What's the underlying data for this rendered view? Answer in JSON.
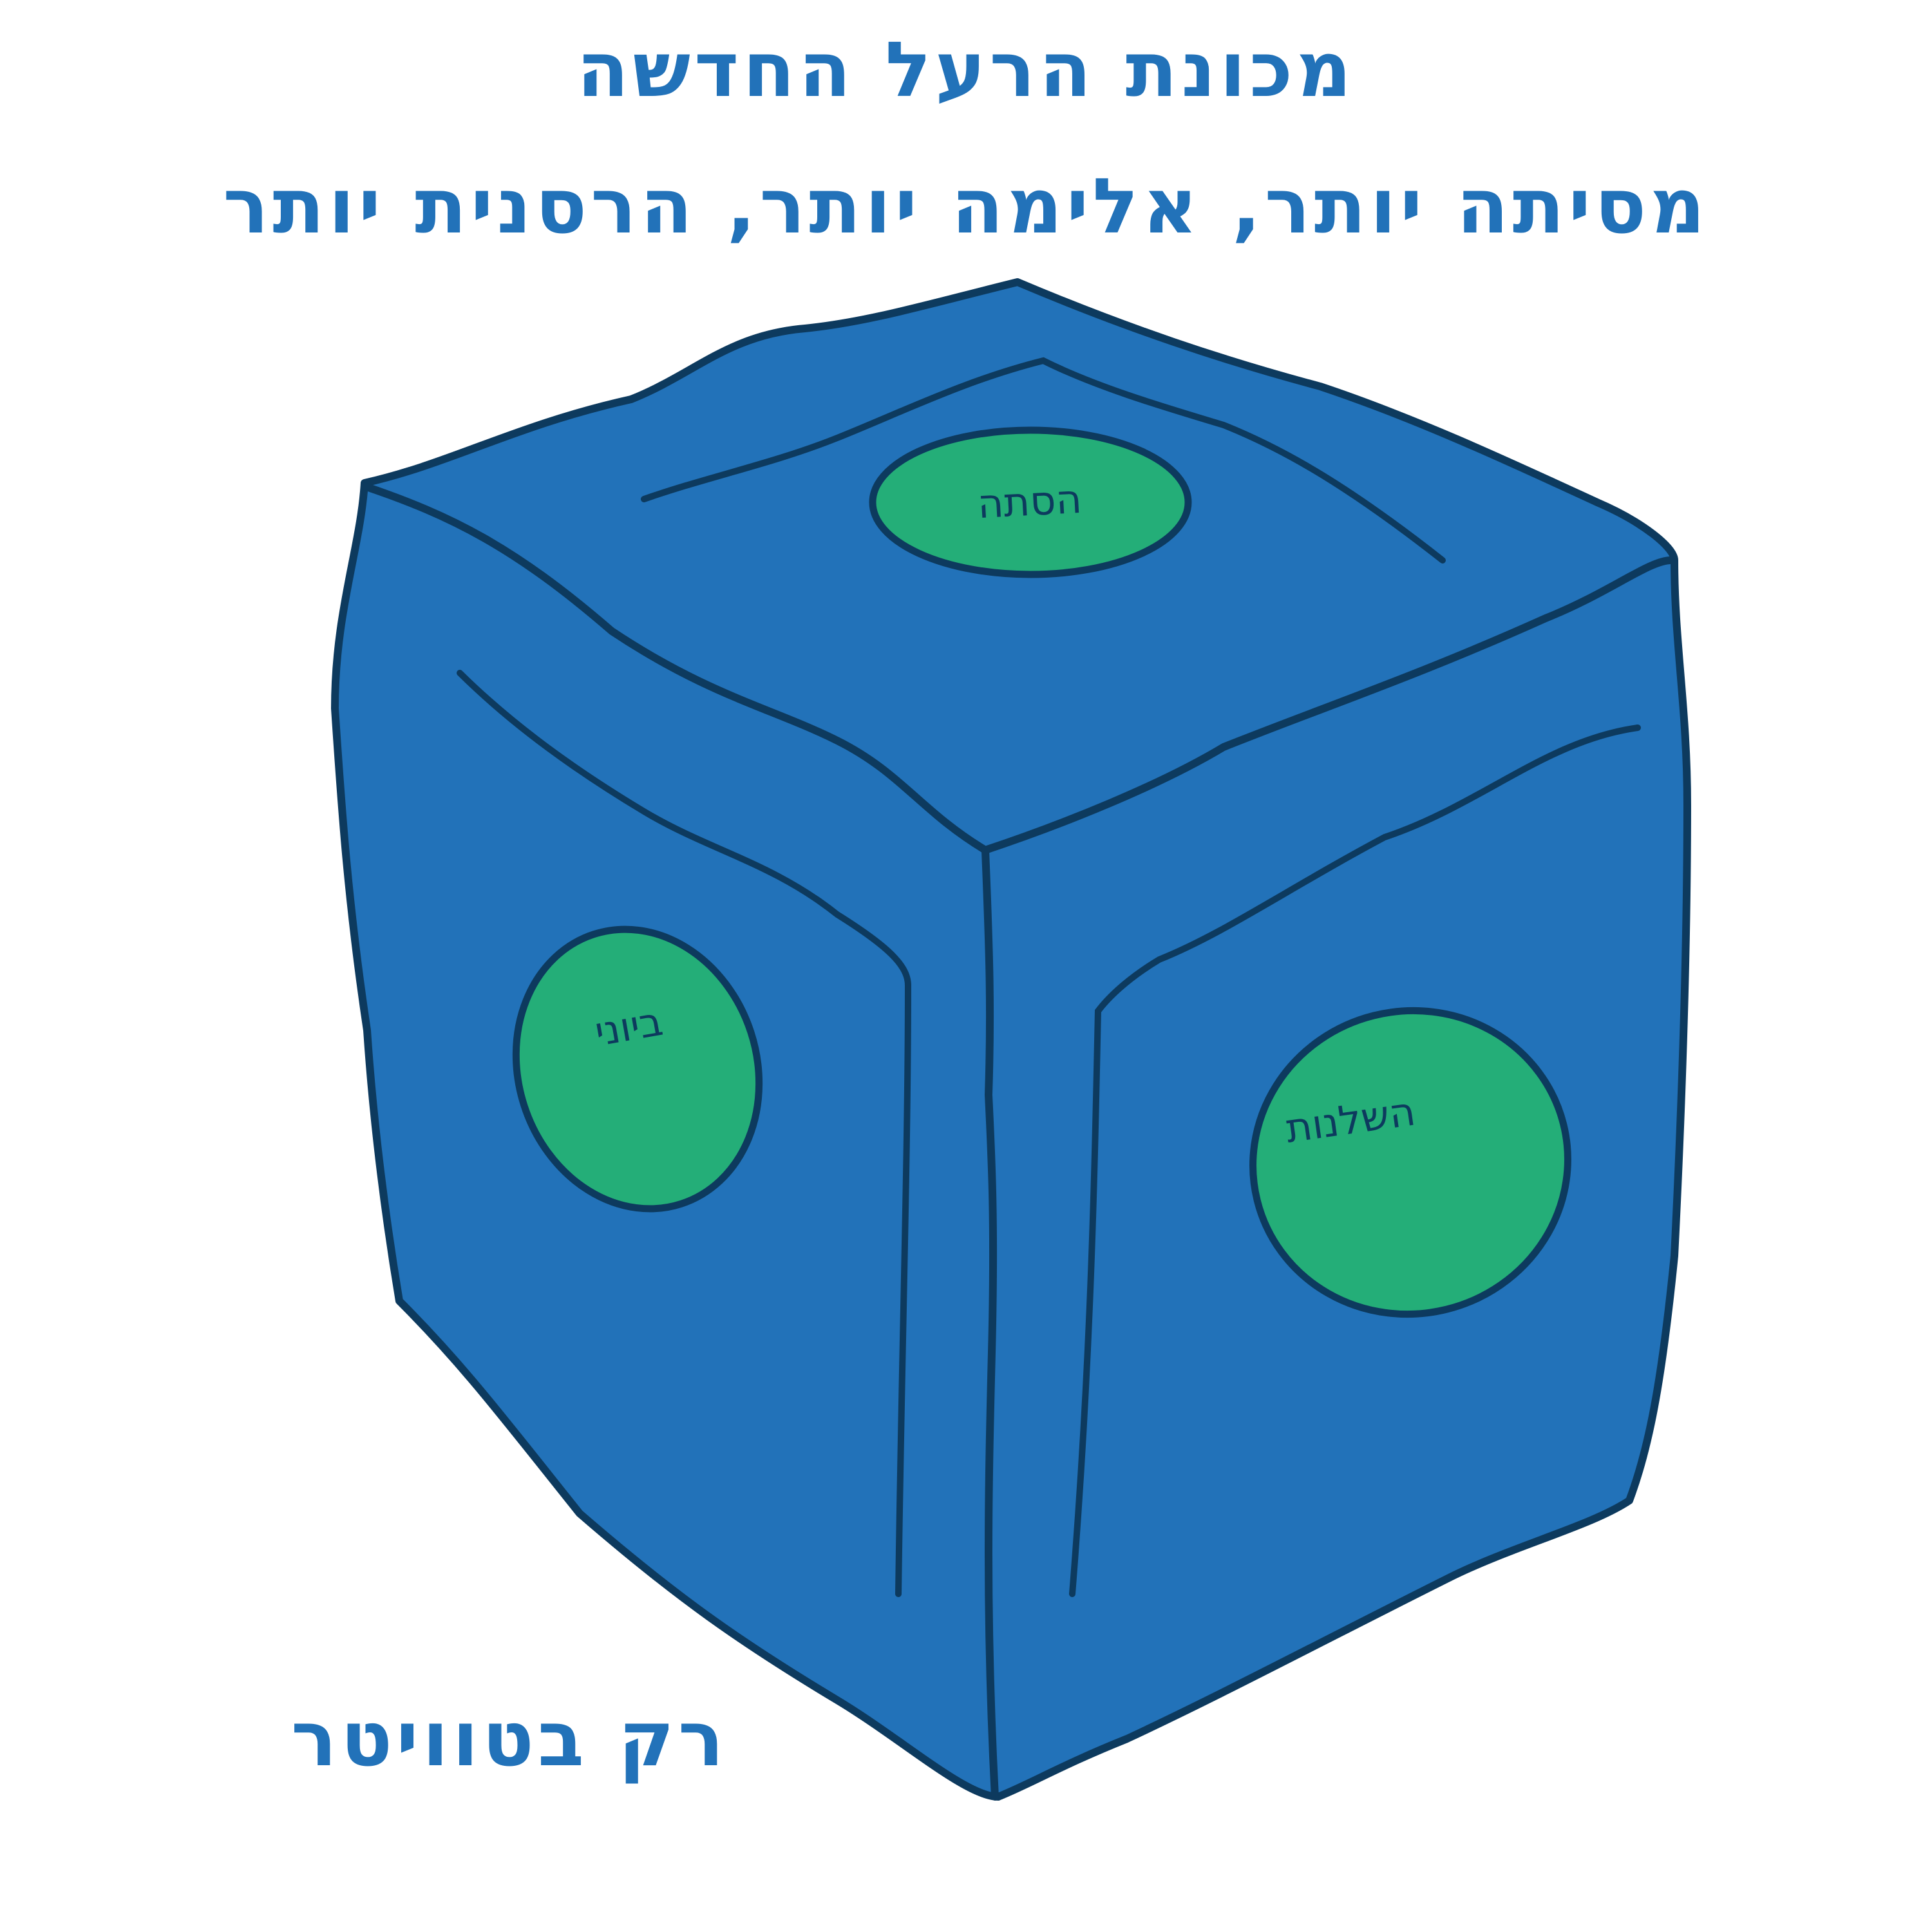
{
  "headline": {
    "line1": "מכונת הרעל החדשה",
    "line2": "מסיתה יותר, אלימה יותר, הרסנית יותר"
  },
  "tagline": "רק בטוויטר",
  "cube": {
    "colors": {
      "body": "#2272b9",
      "outline": "#0d3a5e",
      "button": "#24ae78"
    },
    "labels": {
      "top": "הסתה",
      "left": "ביוני",
      "right": "השלנות"
    }
  }
}
